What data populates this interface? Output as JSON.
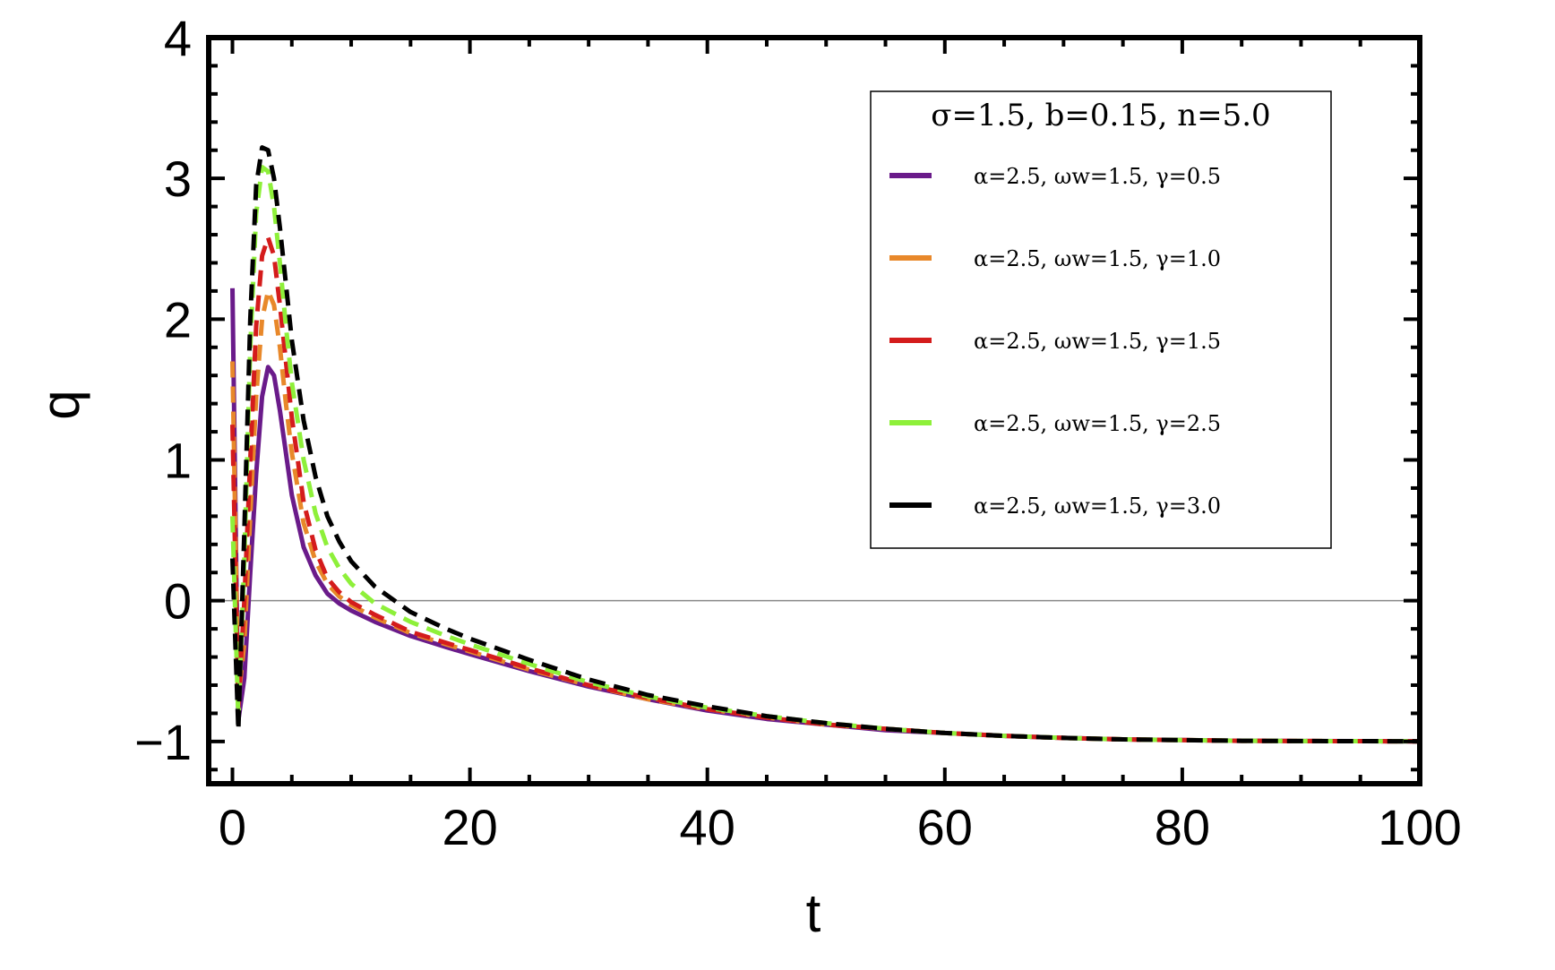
{
  "chart_data": {
    "type": "line",
    "xlabel": "t",
    "ylabel": "q",
    "xlim": [
      -2,
      100
    ],
    "ylim": [
      -1.3,
      4
    ],
    "xticks": [
      0,
      20,
      40,
      60,
      80,
      100
    ],
    "yticks": [
      -1,
      0,
      1,
      2,
      3,
      4
    ],
    "ytick_labels": [
      "−1",
      "0",
      "1",
      "2",
      "3",
      "4"
    ],
    "grid": false,
    "zero_line": true,
    "legend": {
      "placement": "top-right",
      "title": "σ=1.5, b=0.15, n=5.0"
    },
    "series": [
      {
        "name": "α=2.5, ωw=1.5, γ=0.5",
        "color": "#6a1b8a",
        "dash": "solid",
        "x": [
          0,
          0.5,
          1,
          1.5,
          2,
          2.5,
          3,
          3.5,
          4,
          4.5,
          5,
          6,
          7,
          8,
          9,
          10,
          12,
          15,
          18,
          20,
          25,
          30,
          35,
          40,
          45,
          50,
          55,
          60,
          65,
          70,
          75,
          80,
          85,
          90,
          95,
          100
        ],
        "y": [
          2.22,
          -0.85,
          -0.55,
          0.2,
          0.9,
          1.45,
          1.66,
          1.6,
          1.35,
          1.05,
          0.75,
          0.38,
          0.18,
          0.05,
          -0.02,
          -0.07,
          -0.15,
          -0.25,
          -0.33,
          -0.38,
          -0.5,
          -0.61,
          -0.7,
          -0.78,
          -0.84,
          -0.88,
          -0.92,
          -0.94,
          -0.96,
          -0.975,
          -0.985,
          -0.99,
          -0.995,
          -0.997,
          -0.998,
          -0.999
        ]
      },
      {
        "name": "α=2.5, ωw=1.5, γ=1.0",
        "color": "#e8882a",
        "dash": "dashed",
        "x": [
          0,
          0.5,
          1,
          1.5,
          2,
          2.5,
          3,
          3.5,
          4,
          4.5,
          5,
          6,
          7,
          8,
          9,
          10,
          12,
          15,
          18,
          20,
          25,
          30,
          35,
          40,
          45,
          50,
          55,
          60,
          65,
          70,
          75,
          80,
          85,
          90,
          95,
          100
        ],
        "y": [
          1.7,
          -0.7,
          -0.3,
          0.6,
          1.45,
          2.0,
          2.2,
          2.1,
          1.8,
          1.4,
          1.05,
          0.55,
          0.28,
          0.12,
          0.03,
          -0.03,
          -0.12,
          -0.23,
          -0.31,
          -0.36,
          -0.49,
          -0.6,
          -0.7,
          -0.77,
          -0.83,
          -0.88,
          -0.91,
          -0.94,
          -0.96,
          -0.975,
          -0.985,
          -0.99,
          -0.995,
          -0.997,
          -0.998,
          -0.999
        ]
      },
      {
        "name": "α=2.5, ωw=1.5, γ=1.5",
        "color": "#d41c1c",
        "dash": "dashed",
        "x": [
          0,
          0.5,
          1,
          1.5,
          2,
          2.5,
          3,
          3.5,
          4,
          4.5,
          5,
          6,
          7,
          8,
          9,
          10,
          12,
          15,
          18,
          20,
          25,
          30,
          35,
          40,
          45,
          50,
          55,
          60,
          65,
          70,
          75,
          80,
          85,
          90,
          95,
          100
        ],
        "y": [
          1.25,
          -0.75,
          0.0,
          1.0,
          1.95,
          2.45,
          2.58,
          2.45,
          2.1,
          1.7,
          1.3,
          0.7,
          0.36,
          0.16,
          0.06,
          -0.01,
          -0.1,
          -0.22,
          -0.3,
          -0.35,
          -0.48,
          -0.6,
          -0.69,
          -0.77,
          -0.83,
          -0.88,
          -0.91,
          -0.94,
          -0.96,
          -0.975,
          -0.985,
          -0.99,
          -0.995,
          -0.997,
          -0.998,
          -0.999
        ]
      },
      {
        "name": "α=2.5, ωw=1.5, γ=2.5",
        "color": "#8ef03a",
        "dash": "dashed",
        "x": [
          0,
          0.5,
          1,
          1.5,
          2,
          2.5,
          3,
          3.5,
          4,
          4.5,
          5,
          6,
          7,
          8,
          9,
          10,
          12,
          15,
          18,
          20,
          25,
          30,
          35,
          40,
          45,
          50,
          55,
          60,
          65,
          70,
          75,
          80,
          85,
          90,
          95,
          100
        ],
        "y": [
          0.6,
          -0.85,
          0.3,
          1.8,
          2.75,
          3.08,
          3.05,
          2.8,
          2.4,
          1.95,
          1.55,
          1.0,
          0.62,
          0.38,
          0.23,
          0.12,
          -0.02,
          -0.15,
          -0.25,
          -0.31,
          -0.45,
          -0.58,
          -0.68,
          -0.76,
          -0.82,
          -0.87,
          -0.91,
          -0.94,
          -0.96,
          -0.975,
          -0.985,
          -0.99,
          -0.995,
          -0.997,
          -0.998,
          -0.999
        ]
      },
      {
        "name": "α=2.5, ωw=1.5, γ=3.0",
        "color": "#000000",
        "dash": "dashed",
        "x": [
          0,
          0.5,
          1,
          1.5,
          2,
          2.5,
          3,
          3.5,
          4,
          4.5,
          5,
          6,
          7,
          8,
          9,
          10,
          12,
          15,
          18,
          20,
          25,
          30,
          35,
          40,
          45,
          50,
          55,
          60,
          65,
          70,
          75,
          80,
          85,
          90,
          95,
          100
        ],
        "y": [
          0.3,
          -0.92,
          0.5,
          2.0,
          2.95,
          3.22,
          3.2,
          3.0,
          2.65,
          2.25,
          1.85,
          1.28,
          0.88,
          0.6,
          0.42,
          0.28,
          0.1,
          -0.08,
          -0.2,
          -0.27,
          -0.42,
          -0.56,
          -0.67,
          -0.75,
          -0.82,
          -0.87,
          -0.91,
          -0.94,
          -0.96,
          -0.975,
          -0.985,
          -0.99,
          -0.995,
          -0.997,
          -0.998,
          -0.999
        ]
      }
    ]
  }
}
